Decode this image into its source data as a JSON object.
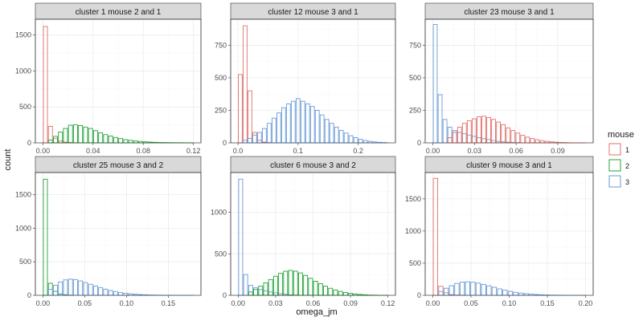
{
  "chart_data": {
    "type": "bar",
    "xlabel": "omega_jm",
    "ylabel": "count",
    "legend": {
      "title": "mouse",
      "placement": "right",
      "entries": [
        {
          "label": "1",
          "color": "#e0706a"
        },
        {
          "label": "2",
          "color": "#23a33a"
        },
        {
          "label": "3",
          "color": "#6a9ad6"
        }
      ]
    },
    "grid": true,
    "facets": [
      {
        "title": "cluster 1 mouse 2 and 1",
        "xlim": [
          -0.006,
          0.126
        ],
        "ylim": [
          0,
          1720
        ],
        "xticks": [
          0.0,
          0.04,
          0.08,
          0.12
        ],
        "xtick_labels": [
          "0.00",
          "0.04",
          "0.08",
          "0.12"
        ],
        "yticks": [
          0,
          500,
          1000,
          1500
        ],
        "ytick_labels": [
          "0",
          "500",
          "1000",
          "1500"
        ],
        "binwidth": 0.004,
        "series": [
          {
            "name": "1",
            "color": "#e0706a",
            "start": 0.0,
            "values": [
              1620,
              230,
              60,
              25,
              10,
              5,
              2
            ]
          },
          {
            "name": "2",
            "color": "#23a33a",
            "start": 0.004,
            "values": [
              40,
              90,
              150,
              200,
              245,
              250,
              240,
              220,
              200,
              170,
              140,
              115,
              95,
              75,
              60,
              45,
              35,
              26,
              20,
              14,
              10,
              7,
              5,
              4,
              3,
              2,
              2,
              1,
              1
            ]
          }
        ]
      },
      {
        "title": "cluster 12 mouse 3 and 1",
        "xlim": [
          -0.012,
          0.262
        ],
        "ylim": [
          0,
          950
        ],
        "xticks": [
          0.0,
          0.1,
          0.2
        ],
        "xtick_labels": [
          "0.0",
          "0.1",
          "0.2"
        ],
        "yticks": [
          0,
          250,
          500,
          750
        ],
        "ytick_labels": [
          "0",
          "250",
          "500",
          "750"
        ],
        "binwidth": 0.008,
        "series": [
          {
            "name": "1",
            "color": "#e0706a",
            "start": 0.0,
            "values": [
              525,
              900,
              400,
              80,
              20,
              6,
              2
            ]
          },
          {
            "name": "3",
            "color": "#6a9ad6",
            "start": 0.008,
            "values": [
              20,
              35,
              60,
              80,
              110,
              150,
              190,
              230,
              270,
              300,
              320,
              340,
              320,
              300,
              280,
              250,
              215,
              180,
              150,
              120,
              95,
              75,
              55,
              40,
              28,
              18,
              12,
              7,
              4,
              2
            ]
          }
        ]
      },
      {
        "title": "cluster 23 mouse 3 and 1",
        "xlim": [
          -0.0055,
          0.1155
        ],
        "ylim": [
          0,
          950
        ],
        "xticks": [
          0.0,
          0.03,
          0.06,
          0.09
        ],
        "xtick_labels": [
          "0.00",
          "0.03",
          "0.06",
          "0.09"
        ],
        "yticks": [
          0,
          250,
          500,
          750
        ],
        "ytick_labels": [
          "0",
          "250",
          "500",
          "750"
        ],
        "binwidth": 0.0035,
        "series": [
          {
            "name": "3",
            "color": "#6a9ad6",
            "start": 0.0,
            "values": [
              910,
              370,
              180,
              120,
              95,
              80,
              70,
              60,
              50,
              40,
              32,
              25,
              18,
              12,
              8,
              5,
              3,
              2
            ]
          },
          {
            "name": "1",
            "color": "#e0706a",
            "start": 0.0105,
            "values": [
              40,
              80,
              120,
              150,
              170,
              185,
              200,
              205,
              195,
              180,
              160,
              140,
              115,
              95,
              75,
              58,
              44,
              33,
              24,
              17,
              12,
              8,
              5,
              3,
              2
            ]
          }
        ]
      },
      {
        "title": "cluster 25 mouse 3 and 2",
        "xlim": [
          -0.009,
          0.189
        ],
        "ylim": [
          0,
          1830
        ],
        "xticks": [
          0.0,
          0.05,
          0.1,
          0.15
        ],
        "xtick_labels": [
          "0.00",
          "0.05",
          "0.10",
          "0.15"
        ],
        "yticks": [
          0,
          500,
          1000,
          1500
        ],
        "ytick_labels": [
          "0",
          "500",
          "1000",
          "1500"
        ],
        "binwidth": 0.006,
        "series": [
          {
            "name": "2",
            "color": "#23a33a",
            "start": 0.0,
            "values": [
              1730,
              180,
              60,
              20,
              8,
              3
            ]
          },
          {
            "name": "3",
            "color": "#6a9ad6",
            "start": 0.006,
            "values": [
              90,
              150,
              200,
              230,
              240,
              235,
              215,
              190,
              165,
              140,
              115,
              92,
              72,
              56,
              42,
              31,
              23,
              16,
              11,
              8,
              5,
              3,
              2,
              1,
              1
            ]
          }
        ]
      },
      {
        "title": "cluster 6 mouse 3 and 2",
        "xlim": [
          -0.006,
          0.126
        ],
        "ylim": [
          0,
          1480
        ],
        "xticks": [
          0.0,
          0.03,
          0.06,
          0.09,
          0.12
        ],
        "xtick_labels": [
          "0.00",
          "0.03",
          "0.06",
          "0.09",
          "0.12"
        ],
        "yticks": [
          0,
          500,
          1000
        ],
        "ytick_labels": [
          "0",
          "500",
          "1000"
        ],
        "binwidth": 0.004,
        "series": [
          {
            "name": "3",
            "color": "#6a9ad6",
            "start": 0.0,
            "values": [
              1400,
              250,
              120,
              90,
              70,
              55,
              40,
              30,
              20,
              12,
              6,
              3
            ]
          },
          {
            "name": "2",
            "color": "#23a33a",
            "start": 0.008,
            "values": [
              40,
              70,
              110,
              150,
              190,
              230,
              265,
              290,
              300,
              290,
              270,
              240,
              205,
              170,
              140,
              110,
              85,
              64,
              47,
              34,
              24,
              16,
              10,
              6,
              3,
              2
            ]
          }
        ]
      },
      {
        "title": "cluster 9 mouse 3 and 1",
        "xlim": [
          -0.01,
          0.21
        ],
        "ylim": [
          0,
          1910
        ],
        "xticks": [
          0.0,
          0.05,
          0.1,
          0.15,
          0.2
        ],
        "xtick_labels": [
          "0.00",
          "0.05",
          "0.10",
          "0.15",
          "0.20"
        ],
        "yticks": [
          0,
          500,
          1000,
          1500
        ],
        "ytick_labels": [
          "0",
          "500",
          "1000",
          "1500"
        ],
        "binwidth": 0.007,
        "series": [
          {
            "name": "1",
            "color": "#e0706a",
            "start": 0.0,
            "values": [
              1820,
              140,
              40,
              10,
              4,
              2
            ]
          },
          {
            "name": "3",
            "color": "#6a9ad6",
            "start": 0.007,
            "values": [
              60,
              110,
              150,
              185,
              205,
              210,
              205,
              190,
              170,
              148,
              125,
              100,
              80,
              62,
              47,
              35,
              25,
              18,
              12,
              8,
              5,
              3,
              2,
              1
            ]
          }
        ]
      }
    ]
  }
}
